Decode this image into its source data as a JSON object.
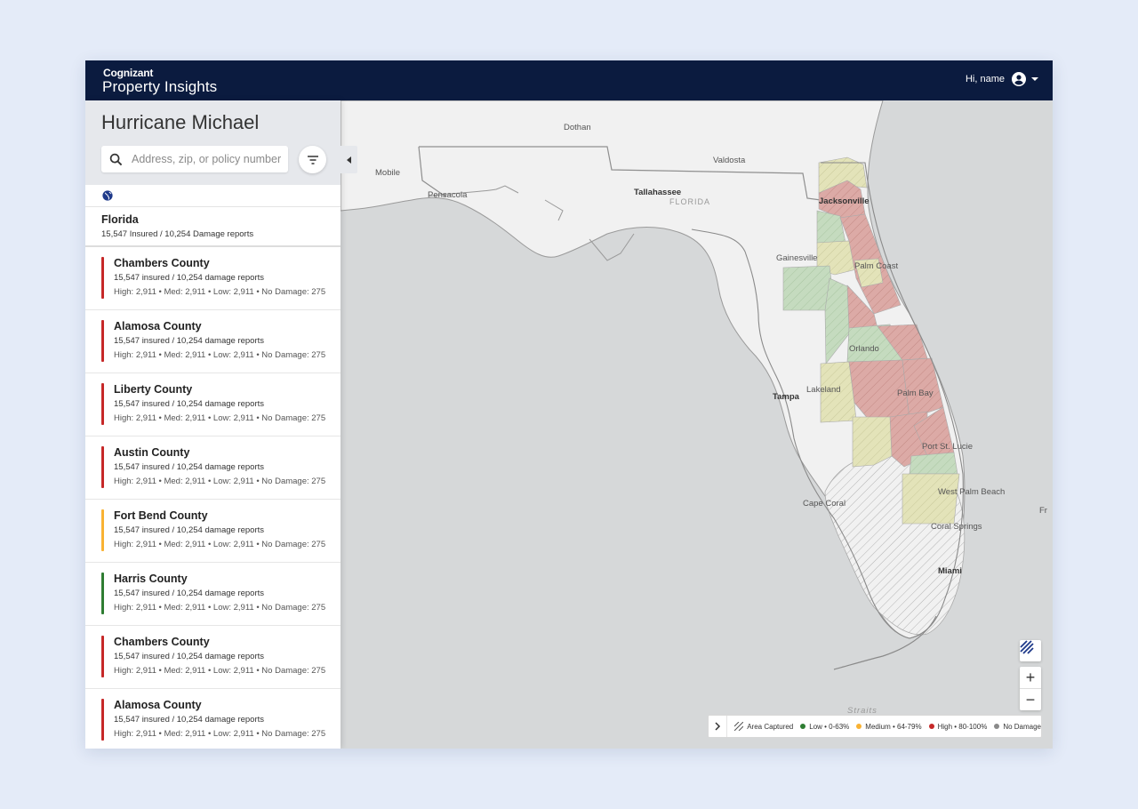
{
  "header": {
    "brand_company": "Cognizant",
    "brand_product": "Property Insights",
    "greeting": "Hi, name"
  },
  "sidebar": {
    "event_title": "Hurricane Michael",
    "search_placeholder": "Address, zip, or policy number",
    "region": {
      "name": "Florida",
      "stats": "15,547 Insured / 10,254 Damage reports"
    },
    "counties": [
      {
        "name": "Chambers County",
        "insured": "15,547 insured / 10,254 damage reports",
        "breakdown": "High: 2,911  •  Med: 2,911  •  Low: 2,911  •  No Damage: 275",
        "level_color": "#c62828"
      },
      {
        "name": "Alamosa County",
        "insured": "15,547 insured / 10,254 damage reports",
        "breakdown": "High: 2,911  •  Med: 2,911  •  Low: 2,911  •  No Damage: 275",
        "level_color": "#c62828"
      },
      {
        "name": "Liberty County",
        "insured": "15,547 insured / 10,254 damage reports",
        "breakdown": "High: 2,911  •  Med: 2,911  •  Low: 2,911  •  No Damage: 275",
        "level_color": "#c62828"
      },
      {
        "name": "Austin County",
        "insured": "15,547 insured / 10,254 damage reports",
        "breakdown": "High: 2,911  •  Med: 2,911  •  Low: 2,911  •  No Damage: 275",
        "level_color": "#c62828"
      },
      {
        "name": "Fort Bend County",
        "insured": "15,547 insured / 10,254 damage reports",
        "breakdown": "High: 2,911  •  Med: 2,911  •  Low: 2,911  •  No Damage: 275",
        "level_color": "#f9b233"
      },
      {
        "name": "Harris County",
        "insured": "15,547 insured / 10,254 damage reports",
        "breakdown": "High: 2,911  •  Med: 2,911  •  Low: 2,911  •  No Damage: 275",
        "level_color": "#2e7d32"
      },
      {
        "name": "Chambers County",
        "insured": "15,547 insured / 10,254 damage reports",
        "breakdown": "High: 2,911  •  Med: 2,911  •  Low: 2,911  •  No Damage: 275",
        "level_color": "#c62828"
      },
      {
        "name": "Alamosa County",
        "insured": "15,547 insured / 10,254 damage reports",
        "breakdown": "High: 2,911  •  Med: 2,911  •  Low: 2,911  •  No Damage: 275",
        "level_color": "#c62828"
      }
    ]
  },
  "map": {
    "places": [
      "Dothan",
      "Valdosta",
      "Mobile",
      "Pensacola",
      "Tallahassee",
      "FLORIDA",
      "Jacksonville",
      "Gainesville",
      "Palm Coast",
      "Orlando",
      "Tampa",
      "Lakeland",
      "Palm Bay",
      "Port St. Lucie",
      "Cape Coral",
      "West Palm Beach",
      "Coral Springs",
      "Miami",
      "Straits",
      "Fr"
    ]
  },
  "legend": {
    "area_captured": "Area Captured",
    "low": "Low • 0-63%",
    "medium": "Medium • 64-79%",
    "high": "High • 80-100%",
    "no_damage": "No Damage",
    "colors": {
      "low": "#2e7d32",
      "medium": "#f9b233",
      "high": "#c62828",
      "no_damage": "#8a8a8a"
    }
  }
}
